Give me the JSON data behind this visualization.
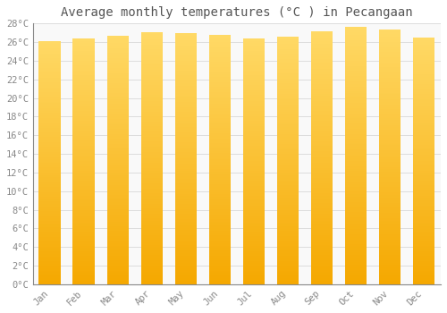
{
  "title": "Average monthly temperatures (°C ) in Pecangaan",
  "months": [
    "Jan",
    "Feb",
    "Mar",
    "Apr",
    "May",
    "Jun",
    "Jul",
    "Aug",
    "Sep",
    "Oct",
    "Nov",
    "Dec"
  ],
  "values": [
    26.1,
    26.4,
    26.7,
    27.1,
    27.0,
    26.8,
    26.4,
    26.6,
    27.2,
    27.6,
    27.4,
    26.5
  ],
  "bar_color_bottom": "#F5A800",
  "bar_color_top": "#FFD966",
  "ylim": [
    0,
    28
  ],
  "ytick_step": 2,
  "background_color": "#ffffff",
  "plot_bg_color": "#f9f9f9",
  "grid_color": "#dddddd",
  "title_fontsize": 10,
  "tick_fontsize": 7.5,
  "font_family": "monospace",
  "bar_width": 0.65
}
